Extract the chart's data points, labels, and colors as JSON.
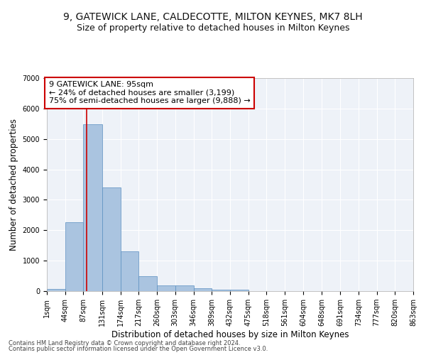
{
  "title_line1": "9, GATEWICK LANE, CALDECOTTE, MILTON KEYNES, MK7 8LH",
  "title_line2": "Size of property relative to detached houses in Milton Keynes",
  "xlabel": "Distribution of detached houses by size in Milton Keynes",
  "ylabel": "Number of detached properties",
  "annotation_title": "9 GATEWICK LANE: 95sqm",
  "annotation_line2": "← 24% of detached houses are smaller (3,199)",
  "annotation_line3": "75% of semi-detached houses are larger (9,888) →",
  "footnote1": "Contains HM Land Registry data © Crown copyright and database right 2024.",
  "footnote2": "Contains public sector information licensed under the Open Government Licence v3.0.",
  "bar_values": [
    75,
    2270,
    5480,
    3400,
    1300,
    490,
    195,
    185,
    95,
    55,
    40,
    0,
    0,
    0,
    0,
    0,
    0,
    0,
    0,
    0
  ],
  "bin_edges": [
    1,
    44,
    87,
    131,
    174,
    217,
    260,
    303,
    346,
    389,
    432,
    475,
    518,
    561,
    604,
    648,
    691,
    734,
    777,
    820,
    863
  ],
  "tick_labels": [
    "1sqm",
    "44sqm",
    "87sqm",
    "131sqm",
    "174sqm",
    "217sqm",
    "260sqm",
    "303sqm",
    "346sqm",
    "389sqm",
    "432sqm",
    "475sqm",
    "518sqm",
    "561sqm",
    "604sqm",
    "648sqm",
    "691sqm",
    "734sqm",
    "777sqm",
    "820sqm",
    "863sqm"
  ],
  "bar_color": "#aac4e0",
  "bar_edge_color": "#5a8fc0",
  "vline_x": 95,
  "vline_color": "#cc0000",
  "annotation_box_color": "#cc0000",
  "ylim": [
    0,
    7000
  ],
  "yticks": [
    0,
    1000,
    2000,
    3000,
    4000,
    5000,
    6000,
    7000
  ],
  "bg_color": "#eef2f8",
  "grid_color": "#ffffff",
  "title_fontsize": 10,
  "subtitle_fontsize": 9,
  "axis_label_fontsize": 8.5,
  "tick_fontsize": 7,
  "annotation_fontsize": 8,
  "footnote_fontsize": 6
}
